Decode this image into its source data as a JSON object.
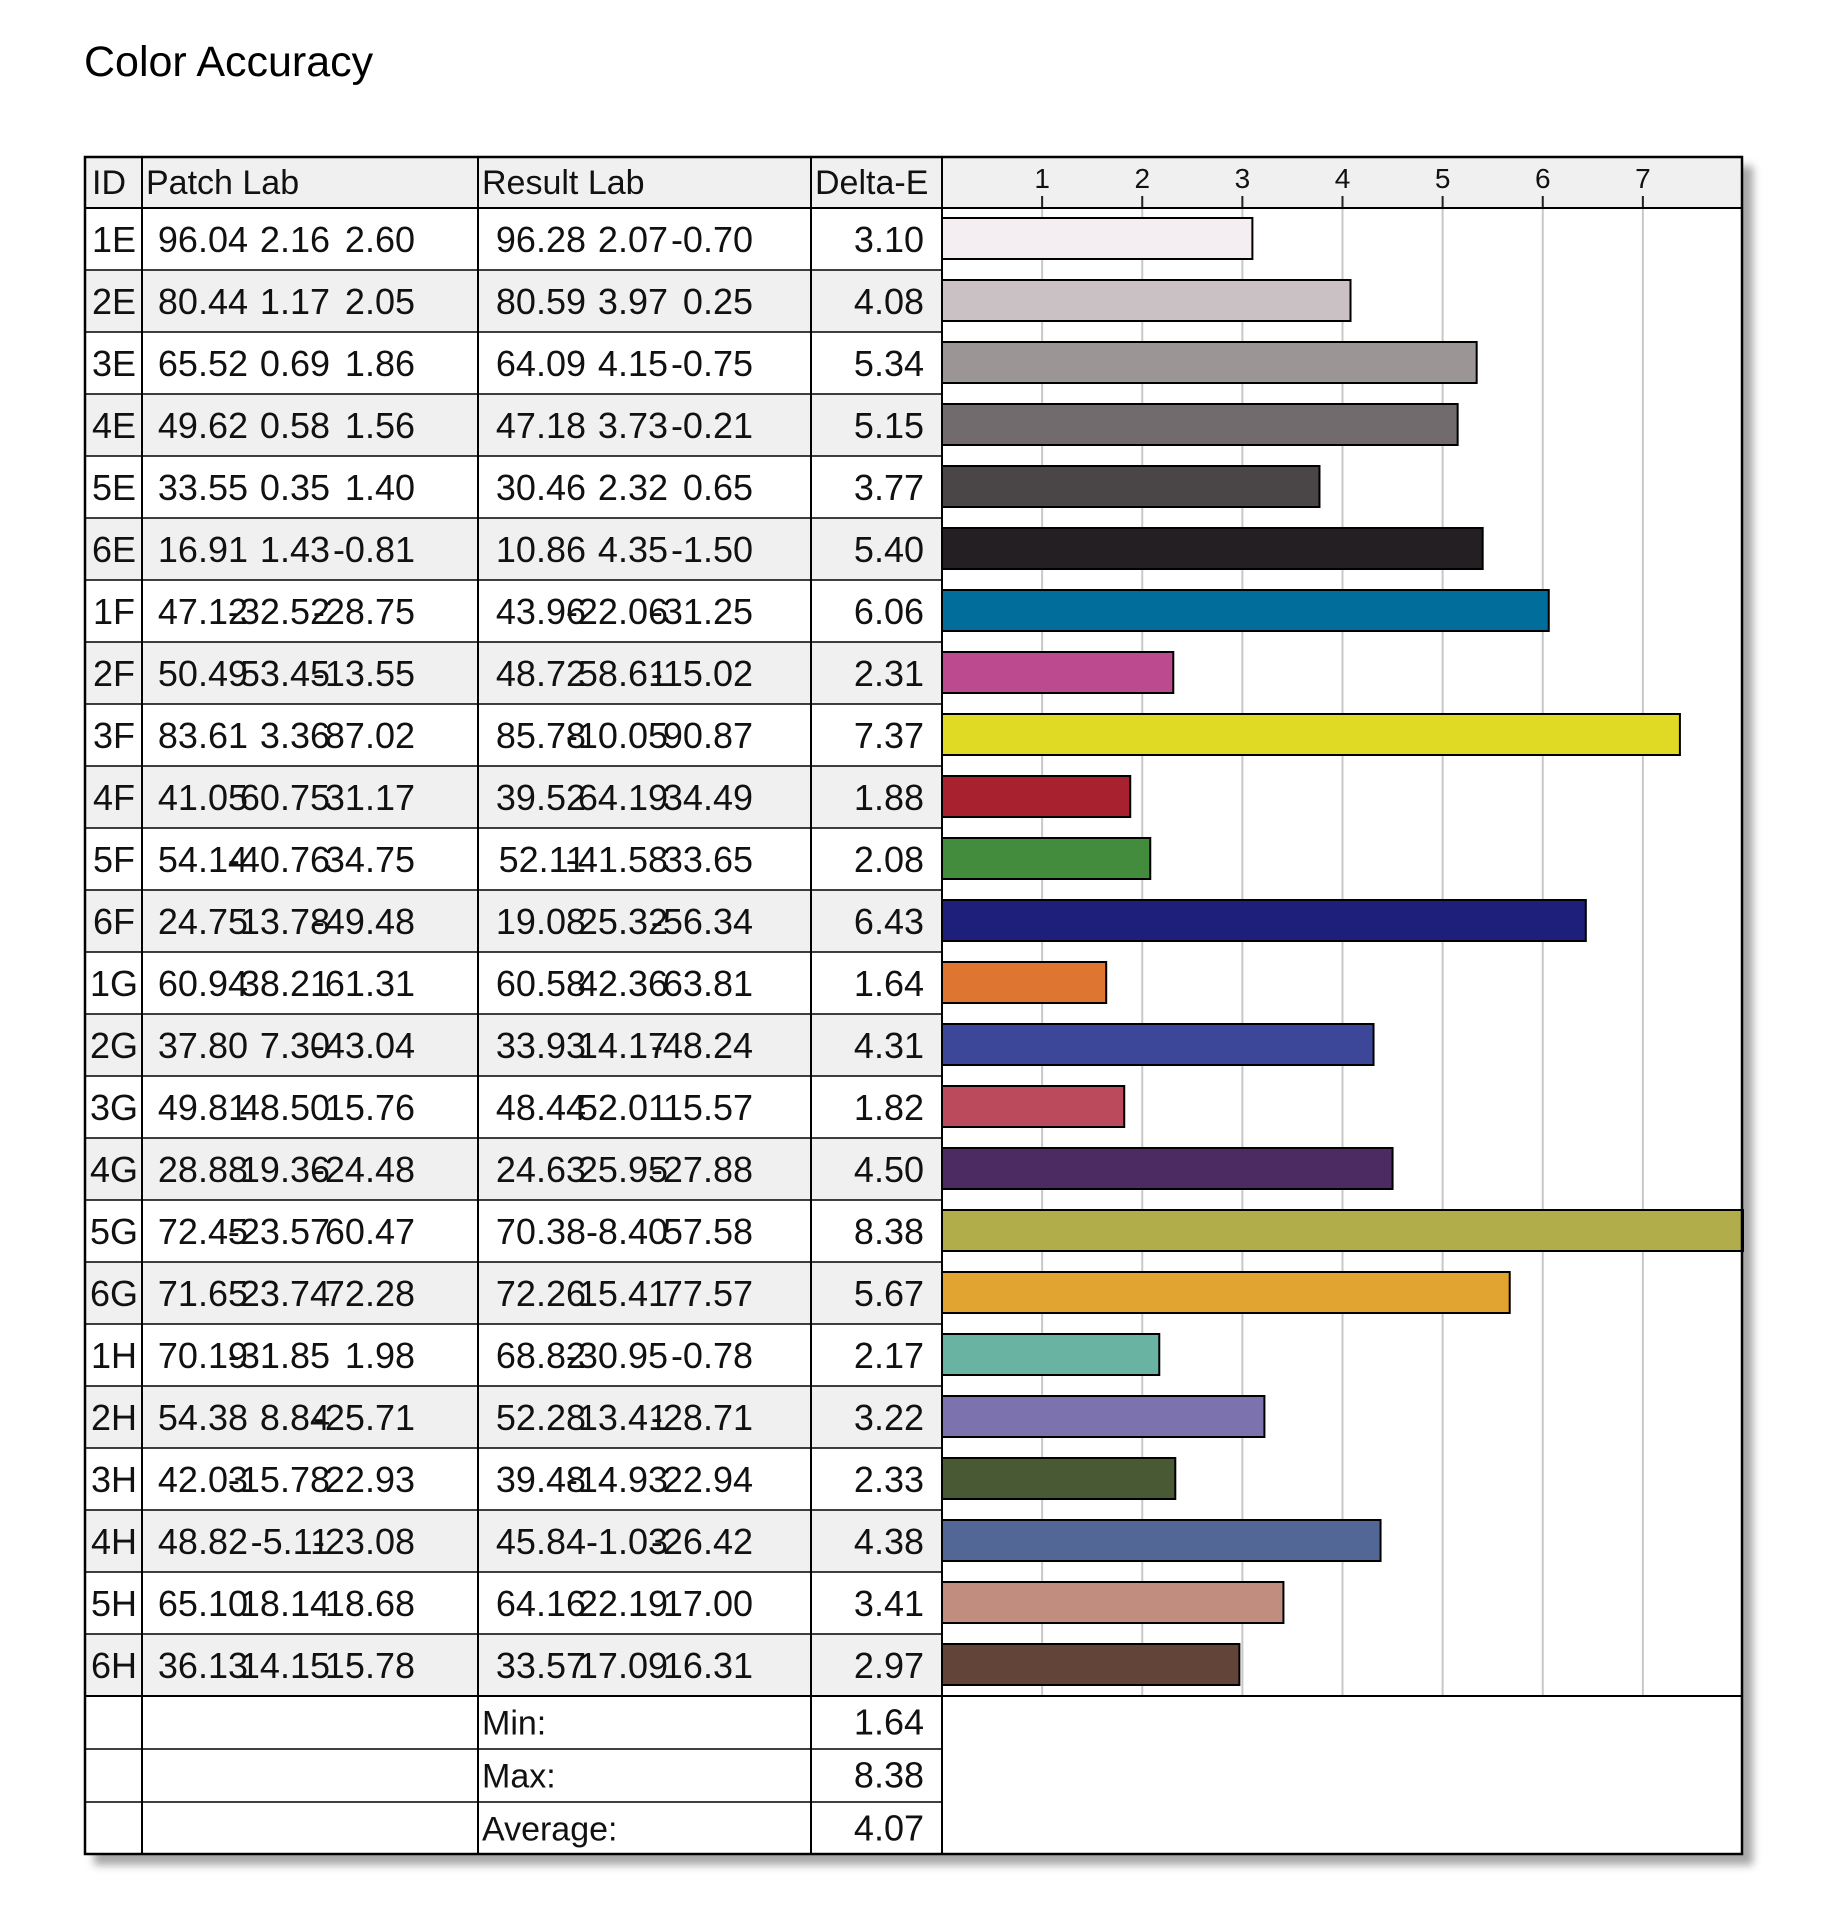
{
  "title": "Color Accuracy",
  "headers": {
    "id": "ID",
    "patch": "Patch Lab",
    "result": "Result Lab",
    "delta": "Delta-E"
  },
  "summary": [
    {
      "label": "Min:",
      "value": "1.64"
    },
    {
      "label": "Max:",
      "value": "8.38"
    },
    {
      "label": "Average:",
      "value": "4.07"
    }
  ],
  "chart_data": {
    "type": "bar",
    "orientation": "horizontal",
    "title": "Color Accuracy",
    "xlabel": "",
    "ylabel": "",
    "xlim": [
      0,
      8
    ],
    "x_ticks": [
      "1",
      "2",
      "3",
      "4",
      "5",
      "6",
      "7"
    ],
    "grid": true,
    "categories": [
      "1E",
      "2E",
      "3E",
      "4E",
      "5E",
      "6E",
      "1F",
      "2F",
      "3F",
      "4F",
      "5F",
      "6F",
      "1G",
      "2G",
      "3G",
      "4G",
      "5G",
      "6G",
      "1H",
      "2H",
      "3H",
      "4H",
      "5H",
      "6H"
    ],
    "patch_lab": [
      [
        "96.04",
        "2.16",
        "2.60"
      ],
      [
        "80.44",
        "1.17",
        "2.05"
      ],
      [
        "65.52",
        "0.69",
        "1.86"
      ],
      [
        "49.62",
        "0.58",
        "1.56"
      ],
      [
        "33.55",
        "0.35",
        "1.40"
      ],
      [
        "16.91",
        "1.43",
        "-0.81"
      ],
      [
        "47.12",
        "-32.52",
        "-28.75"
      ],
      [
        "50.49",
        "53.45",
        "-13.55"
      ],
      [
        "83.61",
        "3.36",
        "87.02"
      ],
      [
        "41.05",
        "60.75",
        "31.17"
      ],
      [
        "54.14",
        "-40.76",
        "34.75"
      ],
      [
        "24.75",
        "13.78",
        "-49.48"
      ],
      [
        "60.94",
        "38.21",
        "61.31"
      ],
      [
        "37.80",
        "7.30",
        "-43.04"
      ],
      [
        "49.81",
        "48.50",
        "15.76"
      ],
      [
        "28.88",
        "19.36",
        "-24.48"
      ],
      [
        "72.45",
        "-23.57",
        "60.47"
      ],
      [
        "71.65",
        "23.74",
        "72.28"
      ],
      [
        "70.19",
        "-31.85",
        "1.98"
      ],
      [
        "54.38",
        "8.84",
        "-25.71"
      ],
      [
        "42.03",
        "-15.78",
        "22.93"
      ],
      [
        "48.82",
        "-5.11",
        "-23.08"
      ],
      [
        "65.10",
        "18.14",
        "18.68"
      ],
      [
        "36.13",
        "14.15",
        "15.78"
      ]
    ],
    "result_lab": [
      [
        "96.28",
        "2.07",
        "-0.70"
      ],
      [
        "80.59",
        "3.97",
        "0.25"
      ],
      [
        "64.09",
        "4.15",
        "-0.75"
      ],
      [
        "47.18",
        "3.73",
        "-0.21"
      ],
      [
        "30.46",
        "2.32",
        "0.65"
      ],
      [
        "10.86",
        "4.35",
        "-1.50"
      ],
      [
        "43.96",
        "-22.06",
        "-31.25"
      ],
      [
        "48.72",
        "58.61",
        "-15.02"
      ],
      [
        "85.78",
        "-10.05",
        "90.87"
      ],
      [
        "39.52",
        "64.19",
        "34.49"
      ],
      [
        "52.11",
        "-41.58",
        "33.65"
      ],
      [
        "19.08",
        "25.32",
        "-56.34"
      ],
      [
        "60.58",
        "42.36",
        "63.81"
      ],
      [
        "33.93",
        "14.17",
        "-48.24"
      ],
      [
        "48.44",
        "52.01",
        "15.57"
      ],
      [
        "24.63",
        "25.95",
        "-27.88"
      ],
      [
        "70.38",
        "-8.40",
        "57.58"
      ],
      [
        "72.26",
        "15.41",
        "77.57"
      ],
      [
        "68.82",
        "-30.95",
        "-0.78"
      ],
      [
        "52.28",
        "13.41",
        "-28.71"
      ],
      [
        "39.48",
        "-14.93",
        "22.94"
      ],
      [
        "45.84",
        "-1.03",
        "-26.42"
      ],
      [
        "64.16",
        "22.19",
        "17.00"
      ],
      [
        "33.57",
        "17.09",
        "16.31"
      ]
    ],
    "values": [
      "3.10",
      "4.08",
      "5.34",
      "5.15",
      "3.77",
      "5.40",
      "6.06",
      "2.31",
      "7.37",
      "1.88",
      "2.08",
      "6.43",
      "1.64",
      "4.31",
      "1.82",
      "4.50",
      "8.38",
      "5.67",
      "2.17",
      "3.22",
      "2.33",
      "4.38",
      "3.41",
      "2.97"
    ],
    "bar_colors": [
      "#f4eef2",
      "#cac1c5",
      "#9b9596",
      "#726b6d",
      "#4a4647",
      "#231f22",
      "#006d9a",
      "#bb4a8f",
      "#e0da24",
      "#a8212f",
      "#448c3d",
      "#1d1f7a",
      "#de7530",
      "#3d4799",
      "#bb4b5c",
      "#4b2b62",
      "#b1ad4b",
      "#e1a431",
      "#69b3a3",
      "#7b72ae",
      "#485934",
      "#536796",
      "#c18d7e",
      "#634439"
    ]
  }
}
